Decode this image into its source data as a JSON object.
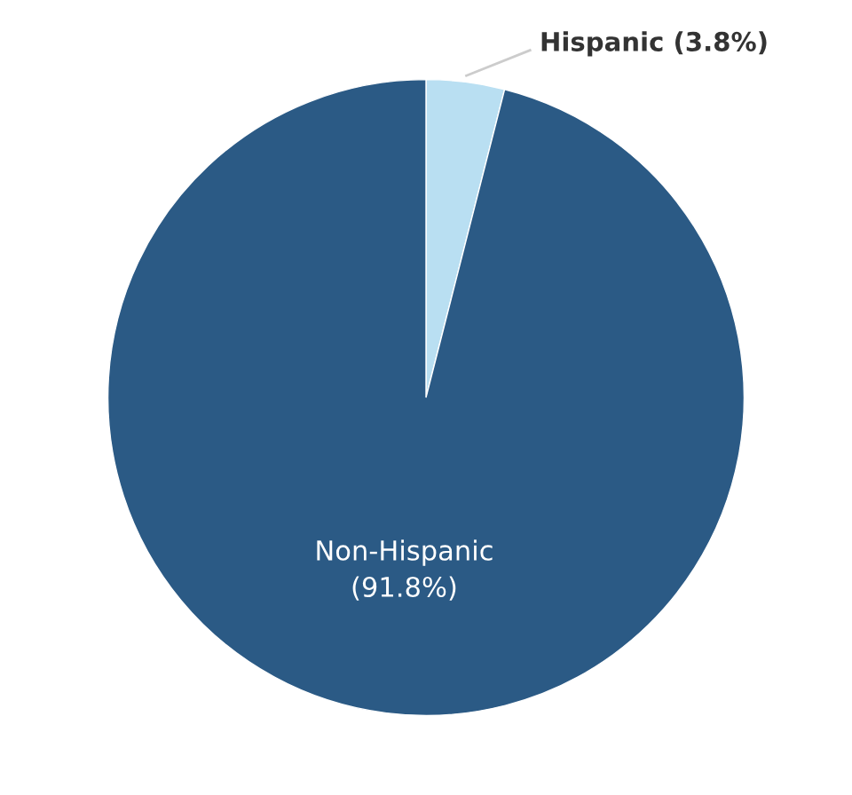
{
  "chart_data": {
    "type": "pie",
    "categories": [
      "Hispanic",
      "Non-Hispanic"
    ],
    "values": [
      3.8,
      91.8
    ],
    "colors": [
      "#b9dff2",
      "#2b5a85"
    ],
    "value_labels": [
      "(3.8%)",
      "(91.8%)"
    ],
    "legend": false
  }
}
